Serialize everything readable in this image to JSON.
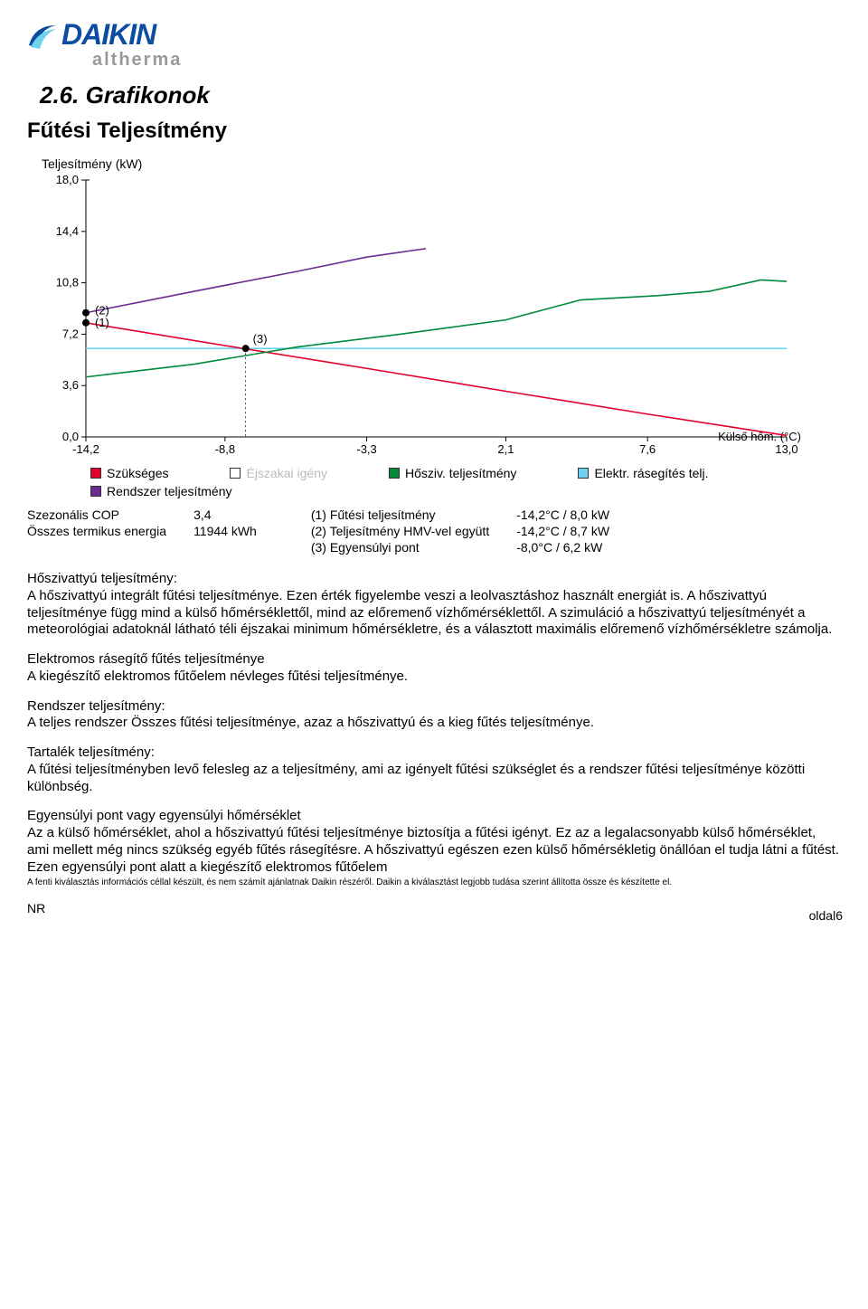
{
  "logo": {
    "brand": "DAIKIN",
    "subbrand": "altherma",
    "brand_color": "#0c4da2",
    "subbrand_color": "#9a9a9a"
  },
  "section_title": "2.6.  Grafikonok",
  "subtitle": "Fűtési Teljesítmény",
  "chart": {
    "type": "line",
    "y_axis_label": "Teljesítmény (kW)",
    "x_axis_label": "Külső hőm. (°C)",
    "y_ticks": [
      "18,0",
      "14,4",
      "10,8",
      "7,2",
      "3,6",
      "0,0"
    ],
    "y_values": [
      18.0,
      14.4,
      10.8,
      7.2,
      3.6,
      0.0
    ],
    "x_ticks": [
      "-14,2",
      "-8,8",
      "-3,3",
      "2,1",
      "7,6",
      "13,0"
    ],
    "x_values": [
      -14.2,
      -8.8,
      -3.3,
      2.1,
      7.6,
      13.0
    ],
    "ylim": [
      0,
      18
    ],
    "xlim": [
      -14.2,
      13.0
    ],
    "annotations": {
      "p1": "(1)",
      "p2": "(2)",
      "p3": "(3)"
    },
    "series": {
      "szukseges": {
        "label": "Szükséges",
        "color": "#e4002b",
        "points": [
          [
            -14.2,
            8.0
          ],
          [
            -8.8,
            6.4
          ],
          [
            -3.3,
            4.8
          ],
          [
            2.1,
            3.2
          ],
          [
            7.6,
            1.6
          ],
          [
            13.0,
            0.1
          ]
        ]
      },
      "ejszakai": {
        "label": "Éjszakai igény",
        "color": "#cccccc",
        "points": []
      },
      "hosz": {
        "label": "Hősziv. teljesítmény",
        "color": "#008a3a",
        "points": [
          [
            -14.2,
            4.2
          ],
          [
            -10.0,
            5.1
          ],
          [
            -6.0,
            6.3
          ],
          [
            -2.0,
            7.2
          ],
          [
            2.1,
            8.2
          ],
          [
            5.0,
            9.6
          ],
          [
            8.0,
            9.9
          ],
          [
            10.0,
            10.2
          ],
          [
            12.0,
            11.0
          ],
          [
            13.0,
            10.9
          ]
        ]
      },
      "elektr": {
        "label": "Elektr. rásegítés telj.",
        "color": "#6fd2f0",
        "points": [
          [
            -14.2,
            6.2
          ],
          [
            13.0,
            6.2
          ]
        ]
      },
      "rendszer": {
        "label": "Rendszer teljesítmény",
        "color": "#6a2c91",
        "points": [
          [
            -14.2,
            8.7
          ],
          [
            -10.0,
            10.2
          ],
          [
            -6.0,
            11.6
          ],
          [
            -3.3,
            12.6
          ],
          [
            -1.0,
            13.2
          ]
        ]
      }
    },
    "marker_points": [
      {
        "x": -14.2,
        "y": 8.0,
        "label": "(1)"
      },
      {
        "x": -14.2,
        "y": 8.7,
        "label": "(2)"
      },
      {
        "x": -8.0,
        "y": 6.2,
        "label": "(3)"
      }
    ],
    "background_color": "#ffffff",
    "gridline_color": "#000000",
    "axis_color": "#000000",
    "font_size_ticks": 12
  },
  "summary": {
    "left": [
      {
        "k": "Szezonális COP",
        "v": "3,4"
      },
      {
        "k": "Összes termikus energia",
        "v": "11944 kWh"
      }
    ],
    "right": [
      {
        "k": "(1) Fűtési teljesítmény",
        "v": "-14,2°C / 8,0 kW"
      },
      {
        "k": "(2) Teljesítmény HMV-vel együtt",
        "v": "-14,2°C / 8,7 kW"
      },
      {
        "k": "(3) Egyensúlyi pont",
        "v": "-8,0°C / 6,2 kW"
      }
    ]
  },
  "paragraphs": [
    {
      "title": "Hőszivattyú teljesítmény:",
      "body": "A hőszivattyú integrált fűtési teljesítménye. Ezen érték figyelembe veszi a leolvasztáshoz használt energiát is. A hőszivattyú teljesítménye függ mind a külső hőmérséklettől, mind az előremenő vízhőmérséklettől. A szimuláció a hőszivattyú teljesítményét a meteorológiai adatoknál látható téli éjszakai minimum hőmérsékletre, és a választott maximális előremenő vízhőmérsékletre számolja."
    },
    {
      "title": "Elektromos rásegítő fűtés teljesítménye",
      "body": "A kiegészítő elektromos fűtőelem névleges fűtési teljesítménye."
    },
    {
      "title": "Rendszer teljesítmény:",
      "body": "A teljes rendszer Összes fűtési teljesítménye, azaz a hőszivattyú és a kieg fűtés teljesítménye."
    },
    {
      "title": "Tartalék teljesítmény:",
      "body": "A fűtési teljesítményben levő felesleg az a teljesítmény, ami az igényelt fűtési szükséglet és a rendszer fűtési teljesítménye közötti különbség."
    },
    {
      "title": "Egyensúlyi pont vagy egyensúlyi hőmérséklet",
      "body": "Az a külső hőmérséklet, ahol a hőszivattyú fűtési teljesítménye biztosítja a fűtési igényt. Ez az a legalacsonyabb külső hőmérséklet, ami mellett még nincs szükség egyéb fűtés rásegítésre. A hőszivattyú egészen ezen külső hőmérsékletig önállóan el tudja látni a fűtést. Ezen egyensúlyi pont alatt a kiegészítő elektromos fűtőelem"
    }
  ],
  "disclaimer": "A fenti kiválasztás információs céllal készült, és nem számít ajánlatnak Daikin részéről. Daikin a kiválasztást legjobb tudása szerint állította össze és készítette el.",
  "footer": {
    "left": "NR",
    "right": "oldal6"
  }
}
